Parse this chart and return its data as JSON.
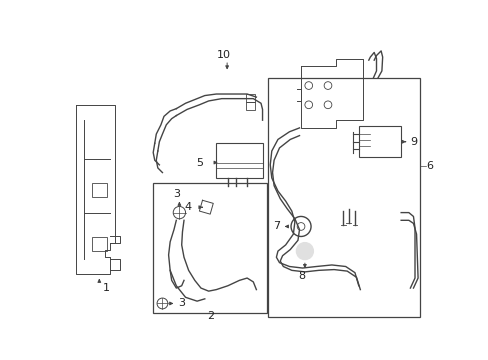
{
  "bg_color": "#ffffff",
  "line_color": "#444444",
  "label_color": "#222222",
  "fig_width": 4.89,
  "fig_height": 3.6,
  "dpi": 100
}
